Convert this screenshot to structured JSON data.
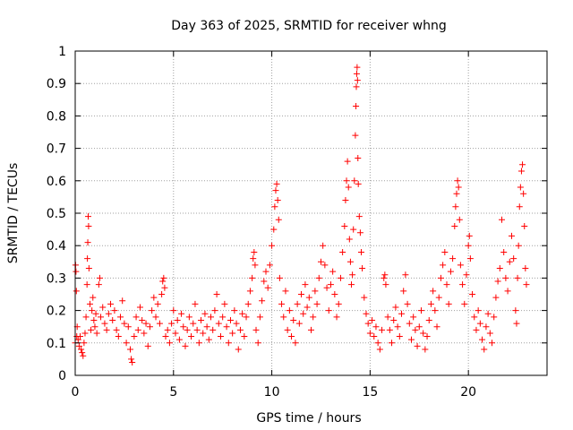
{
  "chart_data": {
    "type": "scatter",
    "title": "Day 363 of 2025, SRMTID for receiver whng",
    "xlabel": "GPS time / hours",
    "ylabel": "SRMTID / TECUs",
    "xlim": [
      0,
      24
    ],
    "ylim": [
      0,
      1
    ],
    "xticks": [
      0,
      5,
      10,
      15,
      20
    ],
    "xtick_labels": [
      "0",
      "5",
      "10",
      "15",
      "20"
    ],
    "yticks": [
      0,
      0.1,
      0.2,
      0.3,
      0.4,
      0.5,
      0.6,
      0.7,
      0.8,
      0.9,
      1
    ],
    "ytick_labels": [
      "0",
      "0.1",
      "0.2",
      "0.3",
      "0.4",
      "0.5",
      "0.6",
      "0.7",
      "0.8",
      "0.9",
      "1"
    ],
    "grid": true,
    "marker": "+",
    "marker_color": "#ff0000",
    "series": [
      {
        "name": "SRMTID",
        "points": [
          [
            0.0,
            0.1
          ],
          [
            0.02,
            0.34
          ],
          [
            0.04,
            0.32
          ],
          [
            0.06,
            0.26
          ],
          [
            0.08,
            0.12
          ],
          [
            0.1,
            0.15
          ],
          [
            0.15,
            0.11
          ],
          [
            0.2,
            0.09
          ],
          [
            0.25,
            0.12
          ],
          [
            0.3,
            0.08
          ],
          [
            0.35,
            0.07
          ],
          [
            0.4,
            0.06
          ],
          [
            0.45,
            0.1
          ],
          [
            0.5,
            0.13
          ],
          [
            0.55,
            0.18
          ],
          [
            0.6,
            0.28
          ],
          [
            0.62,
            0.36
          ],
          [
            0.64,
            0.41
          ],
          [
            0.66,
            0.49
          ],
          [
            0.68,
            0.46
          ],
          [
            0.7,
            0.33
          ],
          [
            0.75,
            0.22
          ],
          [
            0.8,
            0.14
          ],
          [
            0.85,
            0.2
          ],
          [
            0.9,
            0.24
          ],
          [
            0.95,
            0.17
          ],
          [
            1.0,
            0.15
          ],
          [
            1.05,
            0.19
          ],
          [
            1.1,
            0.13
          ],
          [
            1.2,
            0.28
          ],
          [
            1.25,
            0.3
          ],
          [
            1.3,
            0.18
          ],
          [
            1.4,
            0.21
          ],
          [
            1.5,
            0.16
          ],
          [
            1.6,
            0.14
          ],
          [
            1.7,
            0.19
          ],
          [
            1.8,
            0.22
          ],
          [
            1.9,
            0.17
          ],
          [
            2.0,
            0.2
          ],
          [
            2.1,
            0.14
          ],
          [
            2.2,
            0.12
          ],
          [
            2.3,
            0.18
          ],
          [
            2.4,
            0.23
          ],
          [
            2.5,
            0.16
          ],
          [
            2.6,
            0.1
          ],
          [
            2.7,
            0.15
          ],
          [
            2.8,
            0.08
          ],
          [
            2.85,
            0.05
          ],
          [
            2.9,
            0.04
          ],
          [
            3.0,
            0.12
          ],
          [
            3.1,
            0.18
          ],
          [
            3.2,
            0.14
          ],
          [
            3.3,
            0.21
          ],
          [
            3.4,
            0.17
          ],
          [
            3.5,
            0.13
          ],
          [
            3.6,
            0.16
          ],
          [
            3.7,
            0.09
          ],
          [
            3.8,
            0.15
          ],
          [
            3.9,
            0.2
          ],
          [
            4.0,
            0.24
          ],
          [
            4.1,
            0.18
          ],
          [
            4.2,
            0.22
          ],
          [
            4.3,
            0.16
          ],
          [
            4.4,
            0.25
          ],
          [
            4.45,
            0.29
          ],
          [
            4.5,
            0.3
          ],
          [
            4.55,
            0.27
          ],
          [
            4.6,
            0.12
          ],
          [
            4.7,
            0.14
          ],
          [
            4.8,
            0.1
          ],
          [
            4.9,
            0.16
          ],
          [
            5.0,
            0.2
          ],
          [
            5.1,
            0.13
          ],
          [
            5.2,
            0.17
          ],
          [
            5.3,
            0.11
          ],
          [
            5.4,
            0.19
          ],
          [
            5.5,
            0.15
          ],
          [
            5.6,
            0.09
          ],
          [
            5.7,
            0.14
          ],
          [
            5.8,
            0.18
          ],
          [
            5.9,
            0.12
          ],
          [
            6.0,
            0.16
          ],
          [
            6.1,
            0.22
          ],
          [
            6.2,
            0.14
          ],
          [
            6.3,
            0.1
          ],
          [
            6.4,
            0.17
          ],
          [
            6.5,
            0.13
          ],
          [
            6.6,
            0.19
          ],
          [
            6.7,
            0.15
          ],
          [
            6.8,
            0.11
          ],
          [
            6.9,
            0.18
          ],
          [
            7.0,
            0.14
          ],
          [
            7.1,
            0.2
          ],
          [
            7.2,
            0.25
          ],
          [
            7.3,
            0.16
          ],
          [
            7.4,
            0.12
          ],
          [
            7.5,
            0.18
          ],
          [
            7.6,
            0.22
          ],
          [
            7.7,
            0.15
          ],
          [
            7.8,
            0.1
          ],
          [
            7.9,
            0.17
          ],
          [
            8.0,
            0.13
          ],
          [
            8.1,
            0.2
          ],
          [
            8.2,
            0.16
          ],
          [
            8.3,
            0.08
          ],
          [
            8.4,
            0.14
          ],
          [
            8.5,
            0.19
          ],
          [
            8.6,
            0.12
          ],
          [
            8.7,
            0.18
          ],
          [
            8.8,
            0.22
          ],
          [
            8.9,
            0.26
          ],
          [
            9.0,
            0.3
          ],
          [
            9.05,
            0.36
          ],
          [
            9.1,
            0.38
          ],
          [
            9.15,
            0.34
          ],
          [
            9.2,
            0.14
          ],
          [
            9.3,
            0.1
          ],
          [
            9.4,
            0.18
          ],
          [
            9.5,
            0.23
          ],
          [
            9.6,
            0.29
          ],
          [
            9.7,
            0.32
          ],
          [
            9.8,
            0.27
          ],
          [
            9.9,
            0.34
          ],
          [
            10.0,
            0.4
          ],
          [
            10.1,
            0.45
          ],
          [
            10.15,
            0.52
          ],
          [
            10.2,
            0.57
          ],
          [
            10.25,
            0.59
          ],
          [
            10.3,
            0.54
          ],
          [
            10.35,
            0.48
          ],
          [
            10.4,
            0.3
          ],
          [
            10.5,
            0.22
          ],
          [
            10.6,
            0.18
          ],
          [
            10.7,
            0.26
          ],
          [
            10.8,
            0.14
          ],
          [
            10.9,
            0.2
          ],
          [
            11.0,
            0.12
          ],
          [
            11.1,
            0.17
          ],
          [
            11.2,
            0.1
          ],
          [
            11.3,
            0.22
          ],
          [
            11.4,
            0.16
          ],
          [
            11.5,
            0.25
          ],
          [
            11.6,
            0.19
          ],
          [
            11.7,
            0.28
          ],
          [
            11.8,
            0.21
          ],
          [
            11.9,
            0.24
          ],
          [
            12.0,
            0.14
          ],
          [
            12.1,
            0.18
          ],
          [
            12.2,
            0.26
          ],
          [
            12.3,
            0.22
          ],
          [
            12.4,
            0.3
          ],
          [
            12.5,
            0.35
          ],
          [
            12.6,
            0.4
          ],
          [
            12.7,
            0.34
          ],
          [
            12.8,
            0.27
          ],
          [
            12.9,
            0.2
          ],
          [
            13.0,
            0.28
          ],
          [
            13.1,
            0.32
          ],
          [
            13.2,
            0.25
          ],
          [
            13.3,
            0.18
          ],
          [
            13.4,
            0.22
          ],
          [
            13.5,
            0.3
          ],
          [
            13.6,
            0.38
          ],
          [
            13.7,
            0.46
          ],
          [
            13.75,
            0.54
          ],
          [
            13.8,
            0.6
          ],
          [
            13.85,
            0.66
          ],
          [
            13.9,
            0.58
          ],
          [
            13.95,
            0.42
          ],
          [
            14.0,
            0.35
          ],
          [
            14.05,
            0.28
          ],
          [
            14.1,
            0.31
          ],
          [
            14.15,
            0.45
          ],
          [
            14.2,
            0.6
          ],
          [
            14.25,
            0.74
          ],
          [
            14.28,
            0.83
          ],
          [
            14.3,
            0.89
          ],
          [
            14.32,
            0.93
          ],
          [
            14.34,
            0.95
          ],
          [
            14.36,
            0.91
          ],
          [
            14.38,
            0.67
          ],
          [
            14.4,
            0.59
          ],
          [
            14.45,
            0.49
          ],
          [
            14.5,
            0.44
          ],
          [
            14.55,
            0.38
          ],
          [
            14.6,
            0.33
          ],
          [
            14.7,
            0.24
          ],
          [
            14.8,
            0.19
          ],
          [
            14.9,
            0.16
          ],
          [
            15.0,
            0.13
          ],
          [
            15.1,
            0.17
          ],
          [
            15.2,
            0.12
          ],
          [
            15.3,
            0.15
          ],
          [
            15.4,
            0.1
          ],
          [
            15.5,
            0.08
          ],
          [
            15.6,
            0.14
          ],
          [
            15.7,
            0.3
          ],
          [
            15.75,
            0.31
          ],
          [
            15.8,
            0.28
          ],
          [
            15.9,
            0.18
          ],
          [
            16.0,
            0.14
          ],
          [
            16.1,
            0.1
          ],
          [
            16.2,
            0.17
          ],
          [
            16.3,
            0.21
          ],
          [
            16.4,
            0.15
          ],
          [
            16.5,
            0.12
          ],
          [
            16.6,
            0.19
          ],
          [
            16.7,
            0.26
          ],
          [
            16.8,
            0.31
          ],
          [
            16.9,
            0.22
          ],
          [
            17.0,
            0.16
          ],
          [
            17.1,
            0.11
          ],
          [
            17.2,
            0.18
          ],
          [
            17.3,
            0.14
          ],
          [
            17.4,
            0.09
          ],
          [
            17.5,
            0.15
          ],
          [
            17.6,
            0.2
          ],
          [
            17.7,
            0.13
          ],
          [
            17.8,
            0.08
          ],
          [
            17.9,
            0.12
          ],
          [
            18.0,
            0.17
          ],
          [
            18.1,
            0.22
          ],
          [
            18.2,
            0.26
          ],
          [
            18.3,
            0.2
          ],
          [
            18.4,
            0.15
          ],
          [
            18.5,
            0.24
          ],
          [
            18.6,
            0.3
          ],
          [
            18.7,
            0.34
          ],
          [
            18.8,
            0.38
          ],
          [
            18.9,
            0.28
          ],
          [
            19.0,
            0.22
          ],
          [
            19.1,
            0.32
          ],
          [
            19.2,
            0.36
          ],
          [
            19.3,
            0.46
          ],
          [
            19.35,
            0.52
          ],
          [
            19.4,
            0.56
          ],
          [
            19.45,
            0.6
          ],
          [
            19.5,
            0.58
          ],
          [
            19.55,
            0.48
          ],
          [
            19.6,
            0.34
          ],
          [
            19.7,
            0.28
          ],
          [
            19.8,
            0.22
          ],
          [
            19.9,
            0.31
          ],
          [
            20.0,
            0.4
          ],
          [
            20.05,
            0.43
          ],
          [
            20.1,
            0.36
          ],
          [
            20.2,
            0.25
          ],
          [
            20.3,
            0.18
          ],
          [
            20.4,
            0.14
          ],
          [
            20.5,
            0.2
          ],
          [
            20.6,
            0.16
          ],
          [
            20.7,
            0.11
          ],
          [
            20.8,
            0.08
          ],
          [
            20.9,
            0.15
          ],
          [
            21.0,
            0.19
          ],
          [
            21.1,
            0.13
          ],
          [
            21.2,
            0.1
          ],
          [
            21.3,
            0.18
          ],
          [
            21.4,
            0.24
          ],
          [
            21.5,
            0.29
          ],
          [
            21.6,
            0.33
          ],
          [
            21.7,
            0.48
          ],
          [
            21.8,
            0.38
          ],
          [
            21.9,
            0.3
          ],
          [
            22.0,
            0.26
          ],
          [
            22.1,
            0.35
          ],
          [
            22.2,
            0.43
          ],
          [
            22.3,
            0.36
          ],
          [
            22.4,
            0.2
          ],
          [
            22.45,
            0.16
          ],
          [
            22.5,
            0.3
          ],
          [
            22.55,
            0.4
          ],
          [
            22.6,
            0.52
          ],
          [
            22.65,
            0.58
          ],
          [
            22.7,
            0.63
          ],
          [
            22.75,
            0.65
          ],
          [
            22.8,
            0.56
          ],
          [
            22.85,
            0.46
          ],
          [
            22.9,
            0.33
          ],
          [
            22.95,
            0.28
          ]
        ]
      }
    ]
  }
}
